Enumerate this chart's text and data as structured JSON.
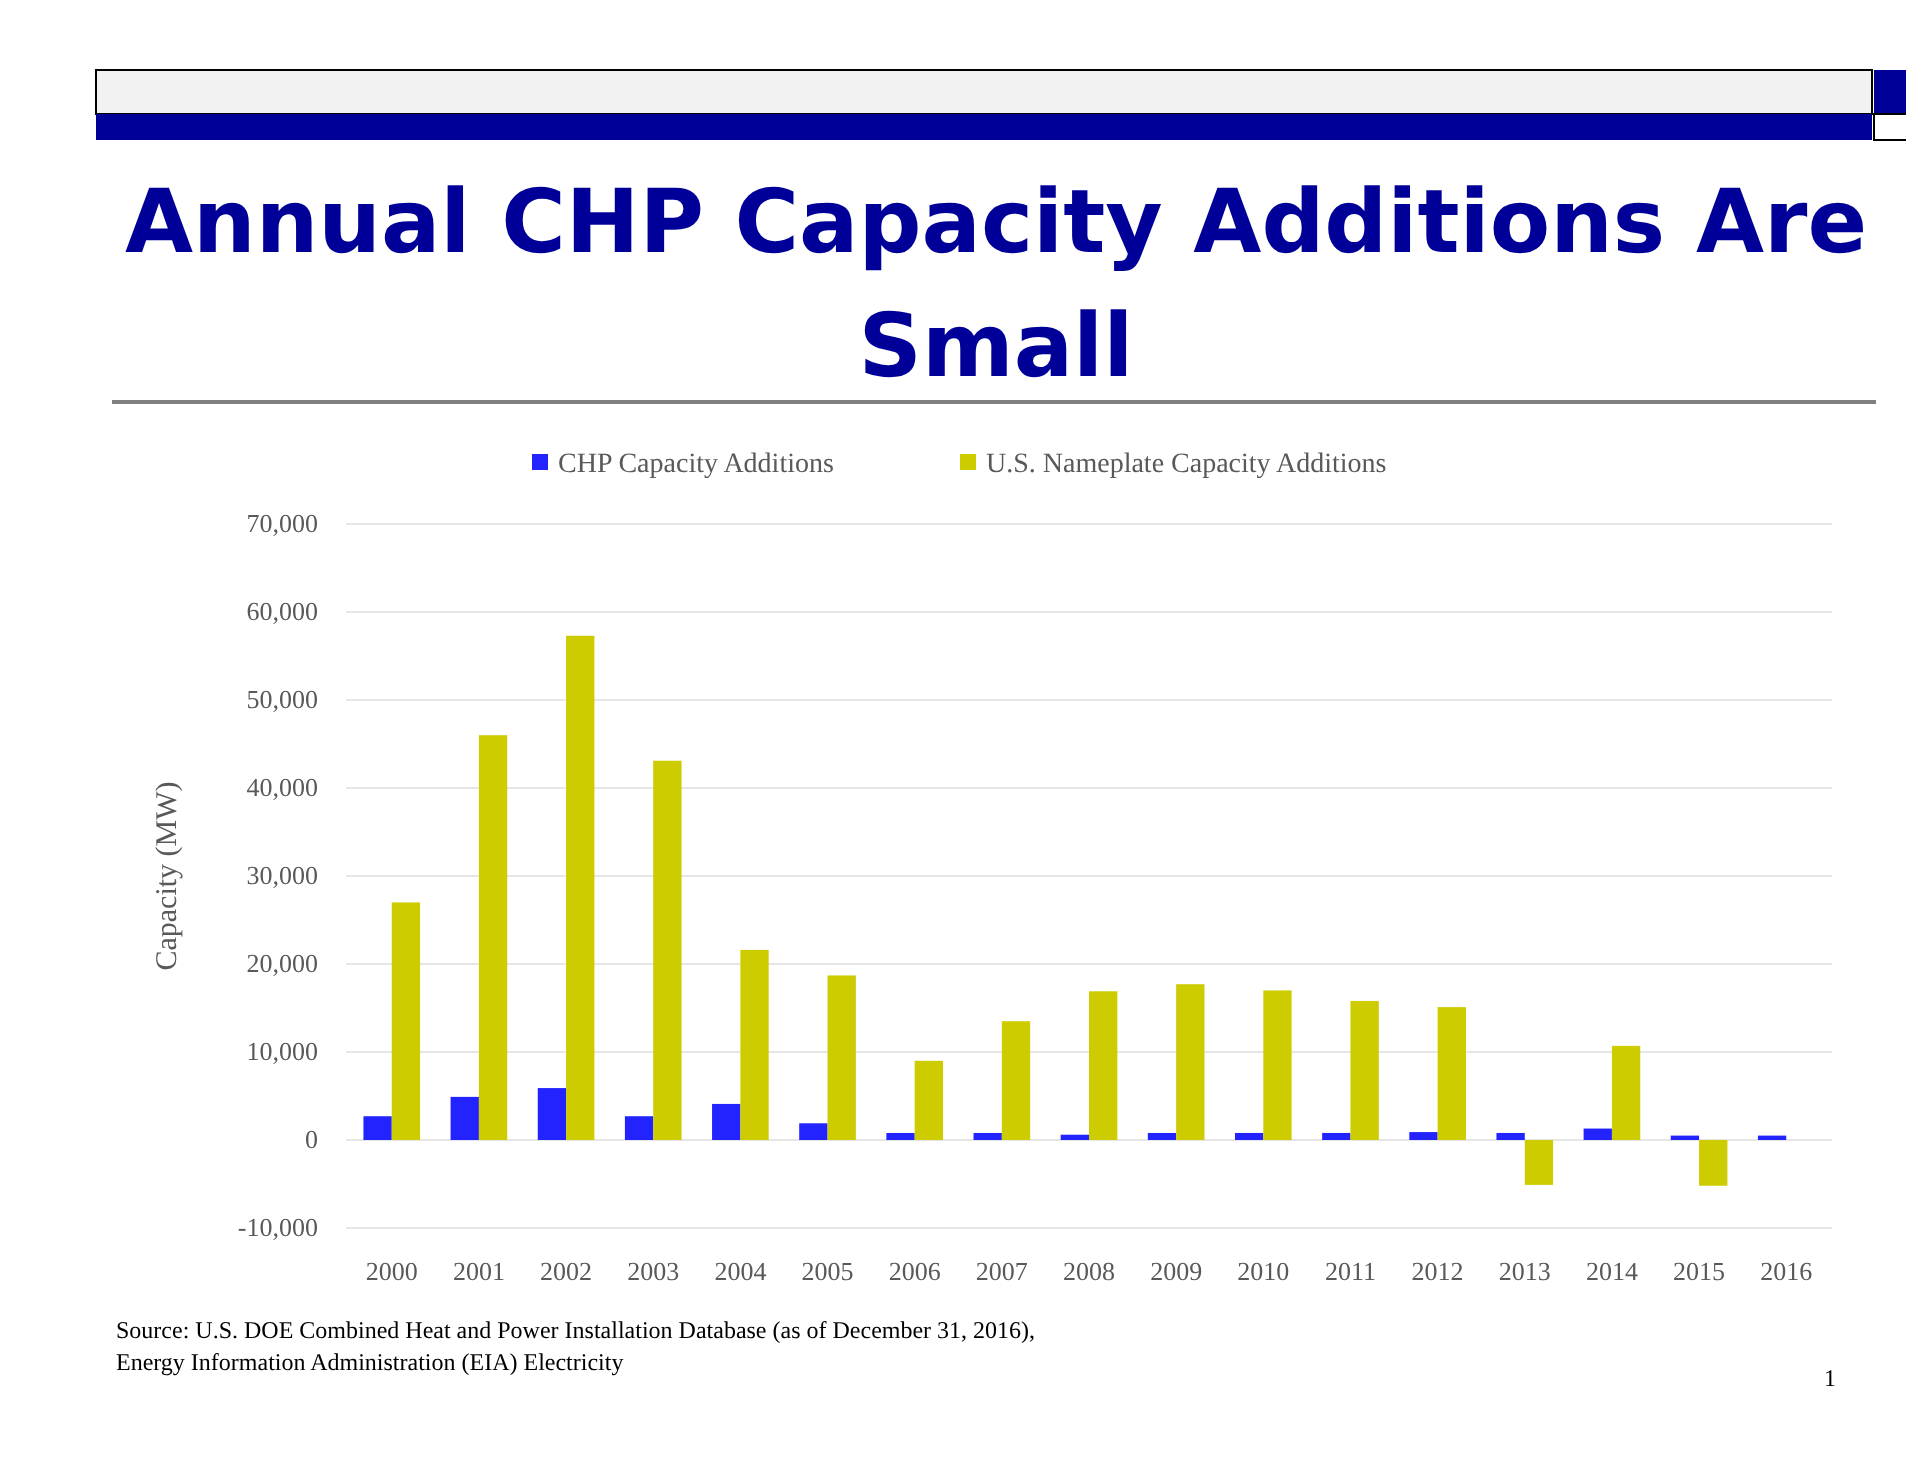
{
  "chart_data": {
    "type": "bar",
    "title": "Annual CHP Capacity Additions Are Small",
    "ylabel": "Capacity (MW)",
    "categories": [
      "2000",
      "2001",
      "2002",
      "2003",
      "2004",
      "2005",
      "2006",
      "2007",
      "2008",
      "2009",
      "2010",
      "2011",
      "2012",
      "2013",
      "2014",
      "2015",
      "2016"
    ],
    "series": [
      {
        "name": "CHP Capacity Additions",
        "color": "#2323ff",
        "values": [
          2700,
          4900,
          5900,
          2700,
          4100,
          1900,
          800,
          800,
          600,
          800,
          800,
          800,
          900,
          800,
          1300,
          500,
          500
        ]
      },
      {
        "name": "U.S. Nameplate Capacity Additions",
        "color": "#cccc00",
        "values": [
          27000,
          46000,
          57300,
          43100,
          21600,
          18700,
          9000,
          13500,
          16900,
          17700,
          17000,
          15800,
          15100,
          -5100,
          10700,
          -5200,
          null
        ]
      }
    ],
    "ylim": [
      -10000,
      70000
    ],
    "yticks": [
      {
        "value": -10000,
        "label": "-10,000"
      },
      0,
      {
        "value": 10000,
        "label": "10,000"
      },
      {
        "value": 20000,
        "label": "20,000"
      },
      {
        "value": 30000,
        "label": "30,000"
      },
      {
        "value": 40000,
        "label": "40,000"
      },
      {
        "value": 50000,
        "label": "50,000"
      },
      {
        "value": 60000,
        "label": "60,000"
      },
      {
        "value": 70000,
        "label": "70,000"
      }
    ],
    "grid": "y",
    "legend": "top",
    "annotations": [
      "Source: U.S. DOE Combined Heat and Power Installation Database (as of December 31, 2016),",
      "Energy Information Administration (EIA) Electricity",
      "1"
    ]
  }
}
